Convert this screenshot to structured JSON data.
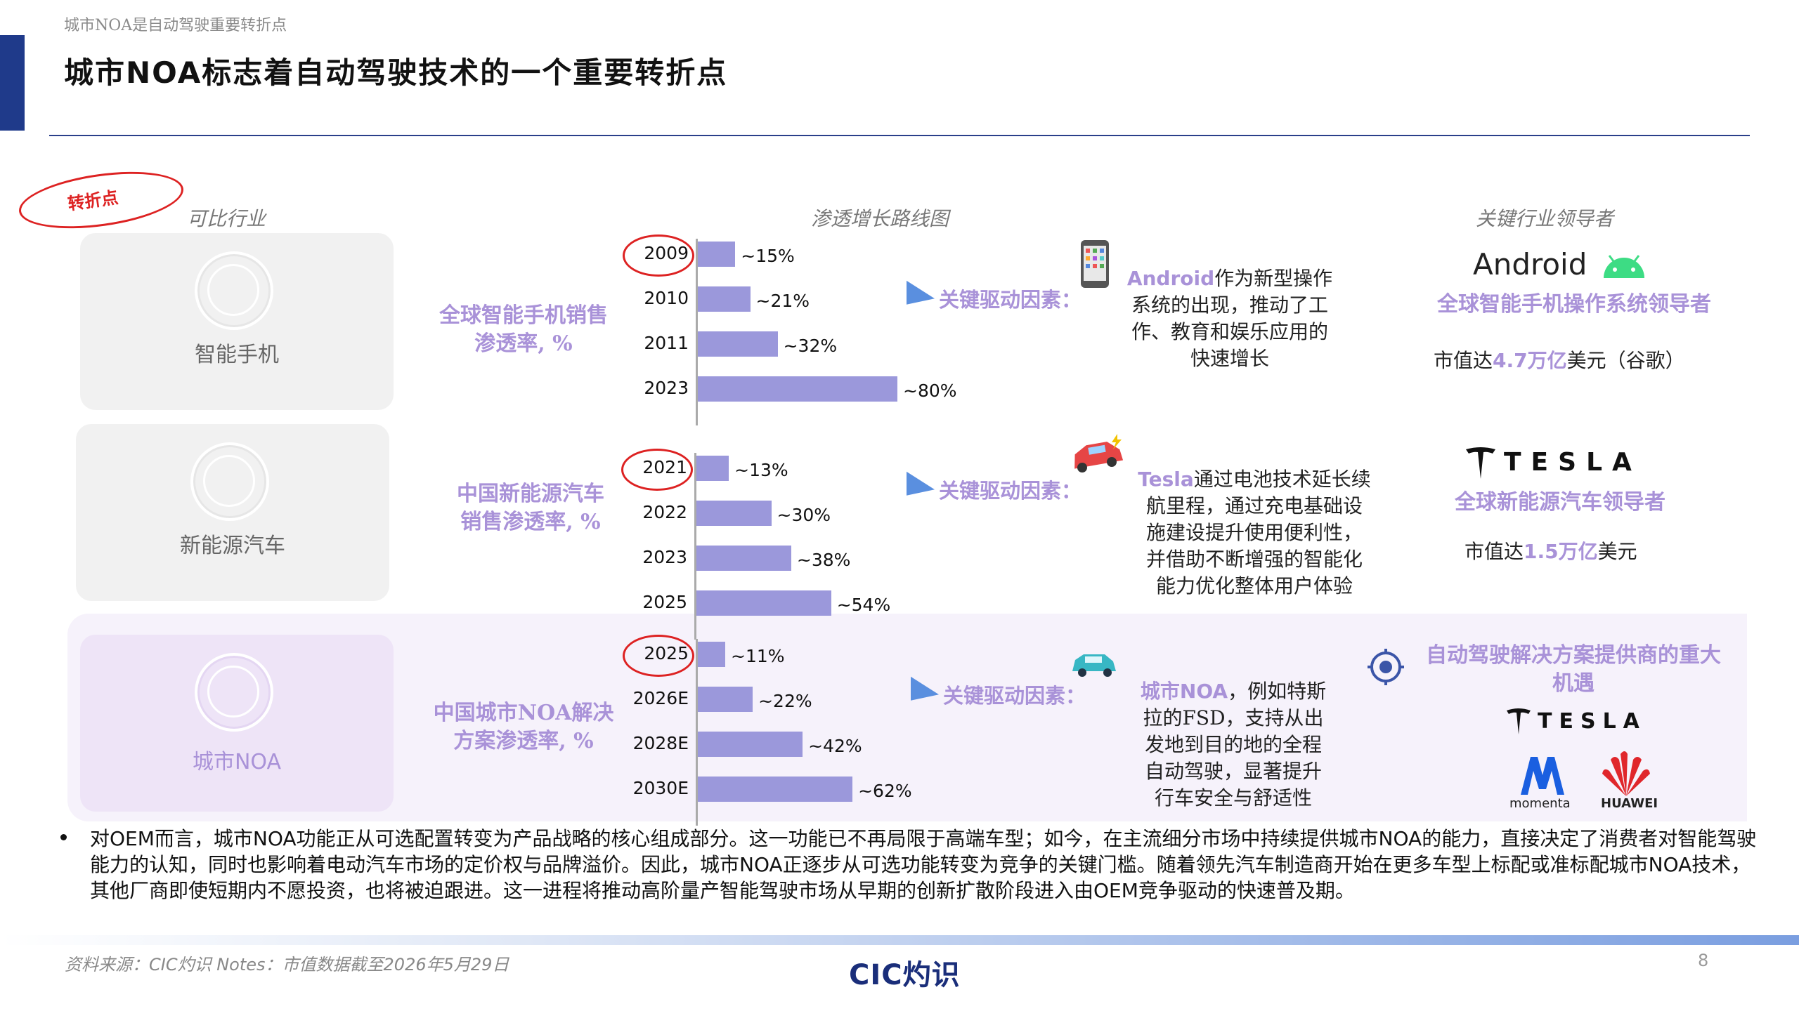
{
  "header": {
    "top_note": "城市NOA是自动驾驶重要转折点",
    "title": "城市NOA标志着自动驾驶技术的一个重要转折点"
  },
  "columns": {
    "comparable": "可比行业",
    "roadmap": "渗透增长路线图",
    "leaders": "关键行业领导者"
  },
  "turning_point_label": "转折点",
  "driver_label": "关键驱动因素：",
  "rows": [
    {
      "industry": "智能手机",
      "ylabel_line1": "全球智能手机销售",
      "ylabel_line2": "渗透率, %",
      "bars": [
        {
          "year": "2009",
          "value": 15,
          "label": "~15%"
        },
        {
          "year": "2010",
          "value": 21,
          "label": "~21%"
        },
        {
          "year": "2011",
          "value": 32,
          "label": "~32%"
        },
        {
          "year": "2023",
          "value": 80,
          "label": "~80%"
        }
      ],
      "desc_highlight": "Android",
      "desc_lines": [
        "作为新型操作",
        "系统的出现，推动了工",
        "作、教育和娱乐应用的",
        "快速增长"
      ],
      "leader_logo": "Android",
      "leader_title": "全球智能手机操作系统领导者",
      "market_prefix": "市值达",
      "market_value": "4.7万亿",
      "market_suffix": "美元（谷歌）"
    },
    {
      "industry": "新能源汽车",
      "ylabel_line1": "中国新能源汽车",
      "ylabel_line2": "销售渗透率, %",
      "bars": [
        {
          "year": "2021",
          "value": 13,
          "label": "~13%"
        },
        {
          "year": "2022",
          "value": 30,
          "label": "~30%"
        },
        {
          "year": "2023",
          "value": 38,
          "label": "~38%"
        },
        {
          "year": "2025",
          "value": 54,
          "label": "~54%"
        }
      ],
      "desc_highlight": "Tesla",
      "desc_lines": [
        "通过电池技术延长续",
        "航里程，通过充电基础设",
        "施建设提升使用便利性，",
        "并借助不断增强的智能化",
        "能力优化整体用户体验"
      ],
      "leader_logo": "TESLA",
      "leader_title": "全球新能源汽车领导者",
      "market_prefix": "市值达",
      "market_value": "1.5万亿",
      "market_suffix": "美元"
    },
    {
      "industry": "城市NOA",
      "ylabel_line1": "中国城市NOA解决",
      "ylabel_line2": "方案渗透率, %",
      "bars": [
        {
          "year": "2025",
          "value": 11,
          "label": "~11%"
        },
        {
          "year": "2026E",
          "value": 22,
          "label": "~22%"
        },
        {
          "year": "2028E",
          "value": 42,
          "label": "~42%"
        },
        {
          "year": "2030E",
          "value": 62,
          "label": "~62%"
        }
      ],
      "desc_highlight": "城市NOA",
      "desc_lines": [
        "，例如特斯",
        "拉的FSD，支持从出",
        "发地到目的地的全程",
        "自动驾驶，显著提升",
        "行车安全与舒适性"
      ],
      "leader_title_line1": "自动驾驶解决方案提供商的重大",
      "leader_title_line2": "机遇",
      "leader_logos": [
        "TESLA",
        "momenta",
        "HUAWEI"
      ]
    }
  ],
  "bullet": "对OEM而言，城市NOA功能正从可选配置转变为产品战略的核心组成部分。这一功能已不再局限于高端车型；如今，在主流细分市场中持续提供城市NOA的能力，直接决定了消费者对智能驾驶能力的认知，同时也影响着电动汽车市场的定价权与品牌溢价。因此，城市NOA正逐步从可选功能转变为竞争的关键门槛。随着领先汽车制造商开始在更多车型上标配或准标配城市NOA技术，其他厂商即使短期内不愿投资，也将被迫跟进。这一进程将推动高阶量产智能驾驶市场从早期的创新扩散阶段进入由OEM竞争驱动的快速普及期。",
  "footer": {
    "source": "资料来源：CIC灼识      Notes：市值数据截至2026年5月29日",
    "logo": "CIC灼识",
    "page": "8"
  },
  "colors": {
    "accent": "#a992d8",
    "bar": "#9b98db",
    "navy": "#1f3a8a",
    "red": "#dd2222"
  }
}
